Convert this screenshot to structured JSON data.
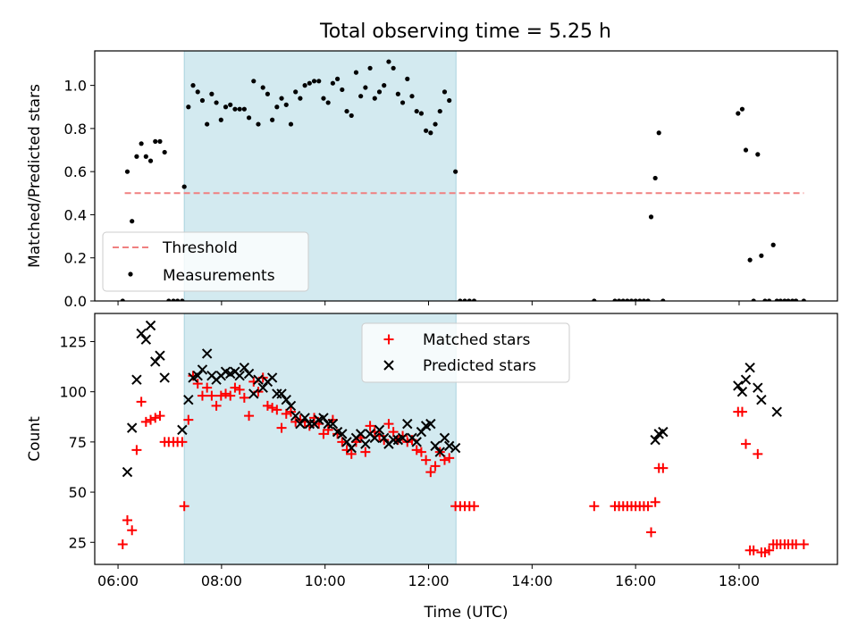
{
  "figure_title": "Total observing time = 5.25 h",
  "chart_data": [
    {
      "type": "scatter",
      "panel": "top",
      "ylabel": "Matched/Predicted stars",
      "xlabel": "",
      "xlim": [
        5.55,
        19.9
      ],
      "ylim": [
        0,
        1.16
      ],
      "yticks": [
        0.0,
        0.2,
        0.4,
        0.6,
        0.8,
        1.0
      ],
      "ytick_labels": [
        "0.0",
        "0.2",
        "0.4",
        "0.6",
        "0.8",
        "1.0"
      ],
      "xticks": [
        6,
        8,
        10,
        12,
        14,
        16,
        18
      ],
      "shaded_interval": [
        7.28,
        12.53
      ],
      "colors": {
        "shade": "#d3eaf0",
        "shade_edge": "#a9d3de",
        "threshold": "#f08080",
        "points": "#000000"
      },
      "threshold": {
        "label": "Threshold",
        "y": 0.5,
        "x_range": [
          6.13,
          19.25
        ]
      },
      "legend": {
        "placement": "lower-left",
        "entries": [
          "Threshold",
          "Measurements"
        ]
      },
      "series": [
        {
          "name": "Measurements",
          "x": [
            6.09,
            6.18,
            6.27,
            6.36,
            6.45,
            6.54,
            6.63,
            6.72,
            6.81,
            6.9,
            6.98,
            7.07,
            7.15,
            7.24,
            7.28,
            7.36,
            7.45,
            7.54,
            7.63,
            7.72,
            7.81,
            7.9,
            7.99,
            8.08,
            8.17,
            8.26,
            8.35,
            8.44,
            8.53,
            8.62,
            8.71,
            8.8,
            8.89,
            8.98,
            9.07,
            9.16,
            9.25,
            9.34,
            9.43,
            9.52,
            9.61,
            9.7,
            9.79,
            9.88,
            9.97,
            10.06,
            10.15,
            10.24,
            10.33,
            10.42,
            10.51,
            10.6,
            10.69,
            10.78,
            10.87,
            10.96,
            11.05,
            11.14,
            11.23,
            11.32,
            11.41,
            11.5,
            11.59,
            11.68,
            11.77,
            11.86,
            11.95,
            12.04,
            12.13,
            12.22,
            12.31,
            12.4,
            12.52,
            12.61,
            12.7,
            12.79,
            12.88,
            15.2,
            15.6,
            15.68,
            15.76,
            15.84,
            15.92,
            16.0,
            16.08,
            16.16,
            16.24,
            16.3,
            16.38,
            16.45,
            16.53,
            17.98,
            18.06,
            18.13,
            18.21,
            18.28,
            18.36,
            18.43,
            18.5,
            18.58,
            18.66,
            18.73,
            18.8,
            18.88,
            18.95,
            19.03,
            19.1,
            19.25
          ],
          "y": [
            0.0,
            0.6,
            0.37,
            0.67,
            0.73,
            0.67,
            0.65,
            0.74,
            0.74,
            0.69,
            0.0,
            0.0,
            0.0,
            0.0,
            0.53,
            0.9,
            1.0,
            0.97,
            0.93,
            0.82,
            0.96,
            0.92,
            0.84,
            0.9,
            0.91,
            0.89,
            0.89,
            0.89,
            0.85,
            1.02,
            0.82,
            0.99,
            0.96,
            0.84,
            0.9,
            0.94,
            0.91,
            0.82,
            0.97,
            0.94,
            1.0,
            1.01,
            1.02,
            1.02,
            0.94,
            0.92,
            1.01,
            1.03,
            0.98,
            0.88,
            0.86,
            1.06,
            0.95,
            0.99,
            1.08,
            0.94,
            0.97,
            1.0,
            1.11,
            1.08,
            0.96,
            0.92,
            1.03,
            0.95,
            0.88,
            0.87,
            0.79,
            0.78,
            0.82,
            0.88,
            0.97,
            0.93,
            0.6,
            0.0,
            0.0,
            0.0,
            0.0,
            0.0,
            0.0,
            0.0,
            0.0,
            0.0,
            0.0,
            0.0,
            0.0,
            0.0,
            0.0,
            0.39,
            0.57,
            0.78,
            0.0,
            0.87,
            0.89,
            0.7,
            0.19,
            0.0,
            0.68,
            0.21,
            0.0,
            0.0,
            0.26,
            0.0,
            0.0,
            0.0,
            0.0,
            0.0,
            0.0,
            0.0
          ]
        }
      ]
    },
    {
      "type": "scatter",
      "panel": "bottom",
      "xlabel": "Time (UTC)",
      "ylabel": "Count",
      "xlim": [
        5.55,
        19.9
      ],
      "ylim": [
        14,
        139
      ],
      "yticks": [
        25,
        50,
        75,
        100,
        125
      ],
      "ytick_labels": [
        "25",
        "50",
        "75",
        "100",
        "125"
      ],
      "xticks": [
        6,
        8,
        10,
        12,
        14,
        16,
        18
      ],
      "xtick_labels": [
        "06:00",
        "08:00",
        "10:00",
        "12:00",
        "14:00",
        "16:00",
        "18:00"
      ],
      "shaded_interval": [
        7.28,
        12.53
      ],
      "colors": {
        "shade": "#d3eaf0",
        "shade_edge": "#a9d3de",
        "matched": "#ff0000",
        "predicted": "#000000"
      },
      "legend": {
        "placement": "upper-center",
        "entries": [
          "Matched stars",
          "Predicted stars"
        ]
      },
      "series": [
        {
          "name": "Matched stars",
          "marker": "+",
          "x": [
            6.09,
            6.18,
            6.27,
            6.36,
            6.45,
            6.54,
            6.63,
            6.72,
            6.81,
            6.9,
            6.98,
            7.07,
            7.15,
            7.24,
            7.28,
            7.36,
            7.45,
            7.54,
            7.63,
            7.72,
            7.81,
            7.9,
            7.99,
            8.08,
            8.17,
            8.26,
            8.35,
            8.44,
            8.53,
            8.62,
            8.71,
            8.8,
            8.89,
            8.98,
            9.07,
            9.16,
            9.25,
            9.34,
            9.43,
            9.52,
            9.61,
            9.7,
            9.79,
            9.88,
            9.97,
            10.06,
            10.15,
            10.24,
            10.33,
            10.42,
            10.51,
            10.6,
            10.69,
            10.78,
            10.87,
            10.96,
            11.05,
            11.14,
            11.23,
            11.32,
            11.41,
            11.5,
            11.59,
            11.68,
            11.77,
            11.86,
            11.95,
            12.04,
            12.13,
            12.22,
            12.31,
            12.4,
            12.52,
            12.61,
            12.7,
            12.79,
            12.88,
            15.2,
            15.6,
            15.68,
            15.76,
            15.84,
            15.92,
            16.0,
            16.08,
            16.16,
            16.24,
            16.3,
            16.38,
            16.45,
            16.53,
            17.98,
            18.06,
            18.13,
            18.21,
            18.28,
            18.36,
            18.43,
            18.5,
            18.58,
            18.66,
            18.73,
            18.8,
            18.88,
            18.95,
            19.03,
            19.1,
            19.25
          ],
          "y": [
            24,
            36,
            31,
            71,
            95,
            85,
            86,
            87,
            88,
            75,
            75,
            75,
            75,
            75,
            43,
            86,
            108,
            104,
            98,
            102,
            98,
            93,
            98,
            99,
            98,
            102,
            101,
            97,
            88,
            105,
            100,
            107,
            93,
            92,
            91,
            82,
            89,
            90,
            85,
            86,
            85,
            83,
            87,
            84,
            79,
            81,
            86,
            79,
            75,
            71,
            69,
            75,
            77,
            70,
            83,
            80,
            78,
            76,
            84,
            80,
            76,
            78,
            75,
            76,
            71,
            70,
            66,
            60,
            63,
            70,
            66,
            67,
            43,
            43,
            43,
            43,
            43,
            43,
            43,
            43,
            43,
            43,
            43,
            43,
            43,
            43,
            43,
            30,
            45,
            62,
            62,
            90,
            90,
            74,
            21,
            21,
            69,
            20,
            20,
            21,
            24,
            24,
            24,
            24,
            24,
            24,
            24,
            24
          ]
        },
        {
          "name": "Predicted stars",
          "marker": "x",
          "x": [
            6.18,
            6.27,
            6.36,
            6.45,
            6.54,
            6.63,
            6.72,
            6.81,
            6.9,
            7.24,
            7.36,
            7.45,
            7.54,
            7.63,
            7.72,
            7.81,
            7.9,
            7.99,
            8.08,
            8.17,
            8.26,
            8.35,
            8.44,
            8.53,
            8.62,
            8.71,
            8.8,
            8.89,
            8.98,
            9.07,
            9.16,
            9.25,
            9.34,
            9.43,
            9.52,
            9.61,
            9.7,
            9.79,
            9.88,
            9.97,
            10.06,
            10.15,
            10.24,
            10.33,
            10.42,
            10.51,
            10.6,
            10.69,
            10.78,
            10.87,
            10.96,
            11.05,
            11.14,
            11.23,
            11.32,
            11.41,
            11.5,
            11.59,
            11.68,
            11.77,
            11.86,
            11.95,
            12.04,
            12.13,
            12.22,
            12.31,
            12.4,
            12.52,
            16.38,
            16.45,
            16.53,
            17.98,
            18.06,
            18.13,
            18.21,
            18.36,
            18.43,
            18.73
          ],
          "y": [
            60,
            82,
            106,
            129,
            126,
            133,
            115,
            118,
            107,
            81,
            96,
            107,
            108,
            111,
            119,
            108,
            106,
            108,
            110,
            109,
            110,
            108,
            112,
            109,
            99,
            106,
            102,
            105,
            107,
            99,
            99,
            96,
            93,
            88,
            84,
            87,
            84,
            84,
            86,
            87,
            84,
            84,
            80,
            79,
            75,
            72,
            77,
            79,
            74,
            79,
            77,
            81,
            77,
            74,
            76,
            76,
            77,
            84,
            77,
            75,
            80,
            83,
            84,
            73,
            70,
            77,
            73,
            72,
            76,
            79,
            80,
            103,
            100,
            106,
            112,
            102,
            96,
            90
          ]
        }
      ]
    }
  ]
}
